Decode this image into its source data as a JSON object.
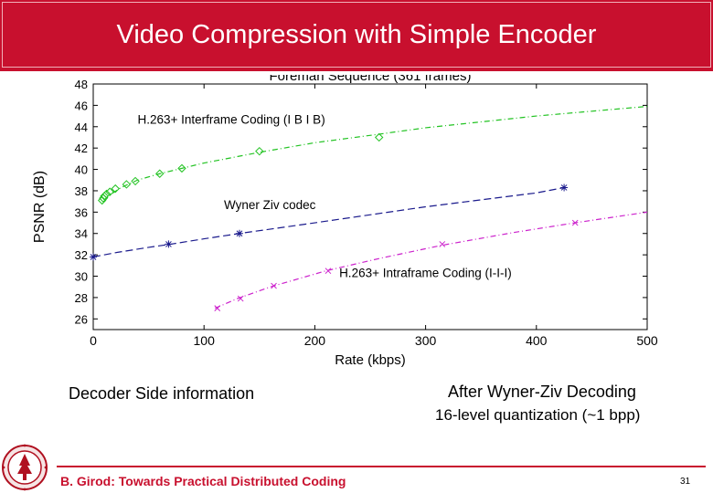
{
  "slide": {
    "title": "Video Compression with Simple Encoder",
    "caption_left": "Decoder Side information",
    "caption_right_line1": "After Wyner-Ziv Decoding",
    "caption_right_line2": "16-level quantization (~1 bpp)",
    "footer": "B. Girod: Towards Practical Distributed Coding",
    "page_number": "31"
  },
  "colors": {
    "title_bar": "#c8102e",
    "footer_accent": "#c8102e",
    "interframe": "#22c322",
    "wyner_ziv": "#1a1a8c",
    "intraframe": "#cc22cc"
  },
  "logo": {
    "icon": "stanford-seal-icon"
  },
  "chart_data": {
    "type": "line",
    "title": "Foreman Sequence (361 frames)",
    "xlabel": "Rate (kbps)",
    "ylabel": "PSNR (dB)",
    "xlim": [
      0,
      500
    ],
    "ylim": [
      25,
      48
    ],
    "xticks": [
      0,
      100,
      200,
      300,
      400,
      500
    ],
    "yticks": [
      26,
      28,
      30,
      32,
      34,
      36,
      38,
      40,
      42,
      44,
      46,
      48
    ],
    "grid": false,
    "series": [
      {
        "name": "H.263+ Interframe Coding (I B I B)",
        "color": "#22c322",
        "dash": "6,3,1,3",
        "marker": "diamond",
        "curve": [
          [
            10,
            37.0
          ],
          [
            15,
            37.6
          ],
          [
            25,
            38.3
          ],
          [
            40,
            39.0
          ],
          [
            60,
            39.6
          ],
          [
            80,
            40.1
          ],
          [
            100,
            40.6
          ],
          [
            150,
            41.6
          ],
          [
            200,
            42.5
          ],
          [
            258,
            43.3
          ],
          [
            300,
            43.9
          ],
          [
            400,
            45.0
          ],
          [
            500,
            45.9
          ]
        ],
        "markers": [
          [
            8,
            37.1
          ],
          [
            9,
            37.3
          ],
          [
            10,
            37.5
          ],
          [
            12,
            37.7
          ],
          [
            15,
            37.9
          ],
          [
            20,
            38.2
          ],
          [
            30,
            38.6
          ],
          [
            38,
            38.9
          ],
          [
            60,
            39.6
          ],
          [
            80,
            40.1
          ],
          [
            150,
            41.7
          ],
          [
            258,
            43.0
          ]
        ]
      },
      {
        "name": "Wyner Ziv codec",
        "color": "#1a1a8c",
        "dash": "8,4",
        "marker": "star",
        "curve": [
          [
            0,
            31.8
          ],
          [
            20,
            32.2
          ],
          [
            50,
            32.7
          ],
          [
            70,
            33.0
          ],
          [
            100,
            33.5
          ],
          [
            132,
            34.0
          ],
          [
            200,
            35.0
          ],
          [
            300,
            36.5
          ],
          [
            400,
            37.8
          ],
          [
            425,
            38.3
          ]
        ],
        "markers": [
          [
            0,
            31.8
          ],
          [
            68,
            33.0
          ],
          [
            132,
            34.0
          ],
          [
            425,
            38.3
          ]
        ]
      },
      {
        "name": "H.263+ Intraframe Coding (I-I-I)",
        "color": "#cc22cc",
        "dash": "6,3,1,3",
        "marker": "x",
        "curve": [
          [
            110,
            27.0
          ],
          [
            130,
            27.9
          ],
          [
            160,
            29.0
          ],
          [
            210,
            30.5
          ],
          [
            260,
            31.7
          ],
          [
            315,
            32.9
          ],
          [
            380,
            34.1
          ],
          [
            435,
            35.0
          ],
          [
            500,
            36.0
          ]
        ],
        "markers": [
          [
            112,
            27.0
          ],
          [
            133,
            27.9
          ],
          [
            163,
            29.1
          ],
          [
            212,
            30.5
          ],
          [
            315,
            33.0
          ],
          [
            435,
            35.0
          ]
        ]
      }
    ],
    "annotations": [
      {
        "text": "H.263+ Interframe Coding (I B I B)",
        "x": 40,
        "y": 44.3
      },
      {
        "text": "Wyner Ziv codec",
        "x": 118,
        "y": 36.3
      },
      {
        "text": "H.263+ Intraframe Coding (I-I-I)",
        "x": 222,
        "y": 29.9
      }
    ]
  }
}
